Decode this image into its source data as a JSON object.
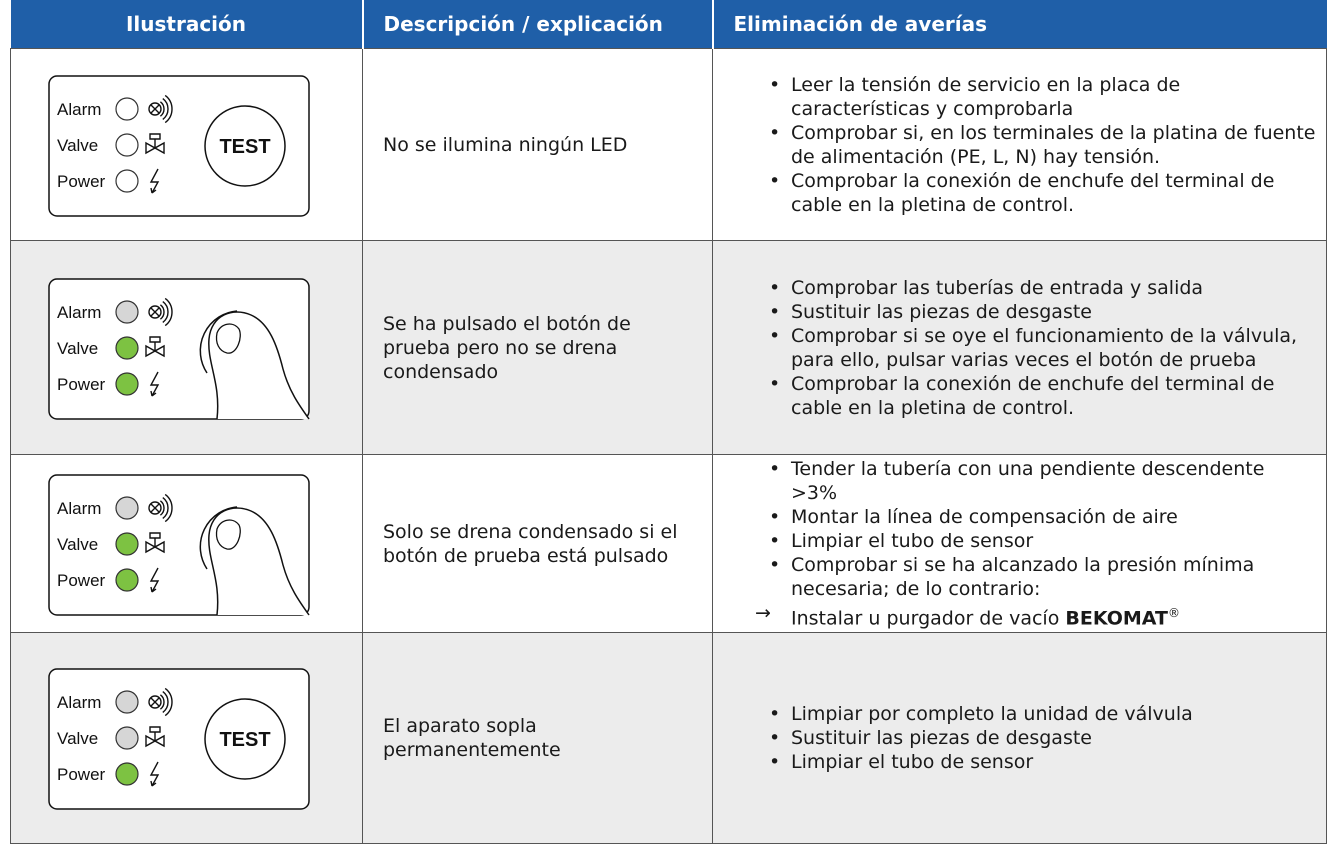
{
  "table": {
    "headers": [
      "Ilustración",
      "Descripción / explicación",
      "Eliminación de averías"
    ],
    "rows": [
      {
        "shade": false,
        "height": 192,
        "illustration": {
          "pressed": false,
          "button": "TEST",
          "leds": [
            {
              "label": "Alarm",
              "color": "#ffffff"
            },
            {
              "label": "Valve",
              "color": "#ffffff"
            },
            {
              "label": "Power",
              "color": "#ffffff"
            }
          ]
        },
        "description": "No se ilumina ningún LED",
        "items": [
          {
            "text": "Leer la tensión de servicio en la placa de características y comprobarla"
          },
          {
            "text": "Comprobar si, en los terminales de la platina de fuente de alimentación (PE, L, N) hay tensión."
          },
          {
            "text": "Comprobar la conexión de enchufe del terminal de cable en la pletina de control."
          }
        ]
      },
      {
        "shade": true,
        "height": 214,
        "illustration": {
          "pressed": true,
          "leds": [
            {
              "label": "Alarm",
              "color": "#d6d6d6"
            },
            {
              "label": "Valve",
              "color": "#7dc242"
            },
            {
              "label": "Power",
              "color": "#7dc242"
            }
          ]
        },
        "description": "Se ha pulsado el botón de prueba pero no se drena condensado",
        "items": [
          {
            "text": "Comprobar las tuberías de entrada y salida"
          },
          {
            "text": "Sustituir las piezas de desgaste"
          },
          {
            "text": "Comprobar si se oye el funcionamiento de la válvula, para ello, pulsar varias veces el botón de prueba"
          },
          {
            "text": "Comprobar la conexión de enchufe del terminal de cable en la pletina de control."
          }
        ]
      },
      {
        "shade": false,
        "height": 176,
        "illustration": {
          "pressed": true,
          "leds": [
            {
              "label": "Alarm",
              "color": "#d6d6d6"
            },
            {
              "label": "Valve",
              "color": "#7dc242"
            },
            {
              "label": "Power",
              "color": "#7dc242"
            }
          ]
        },
        "description": "Solo se drena condensado si el botón de prueba está pulsado",
        "items": [
          {
            "text": "Tender la tubería con una pendiente descendente >3%"
          },
          {
            "text": "Montar la línea de compensación de aire"
          },
          {
            "text": "Limpiar el tubo de sensor"
          },
          {
            "text": "Comprobar si se ha alcanzado la presión mínima necesaria; de lo contrario:"
          },
          {
            "arrow": true,
            "text": "Instalar u purgador de vacío ",
            "bold": "BEKOMAT",
            "sup": "®"
          }
        ]
      },
      {
        "shade": true,
        "height": 211,
        "illustration": {
          "pressed": false,
          "button": "TEST",
          "leds": [
            {
              "label": "Alarm",
              "color": "#d6d6d6"
            },
            {
              "label": "Valve",
              "color": "#d6d6d6"
            },
            {
              "label": "Power",
              "color": "#7dc242"
            }
          ]
        },
        "description": "El aparato sopla permanentemente",
        "items": [
          {
            "text": "Limpiar por completo la unidad de válvula"
          },
          {
            "text": "Sustituir las piezas de desgaste"
          },
          {
            "text": "Limpiar el tubo de sensor"
          }
        ]
      }
    ]
  }
}
